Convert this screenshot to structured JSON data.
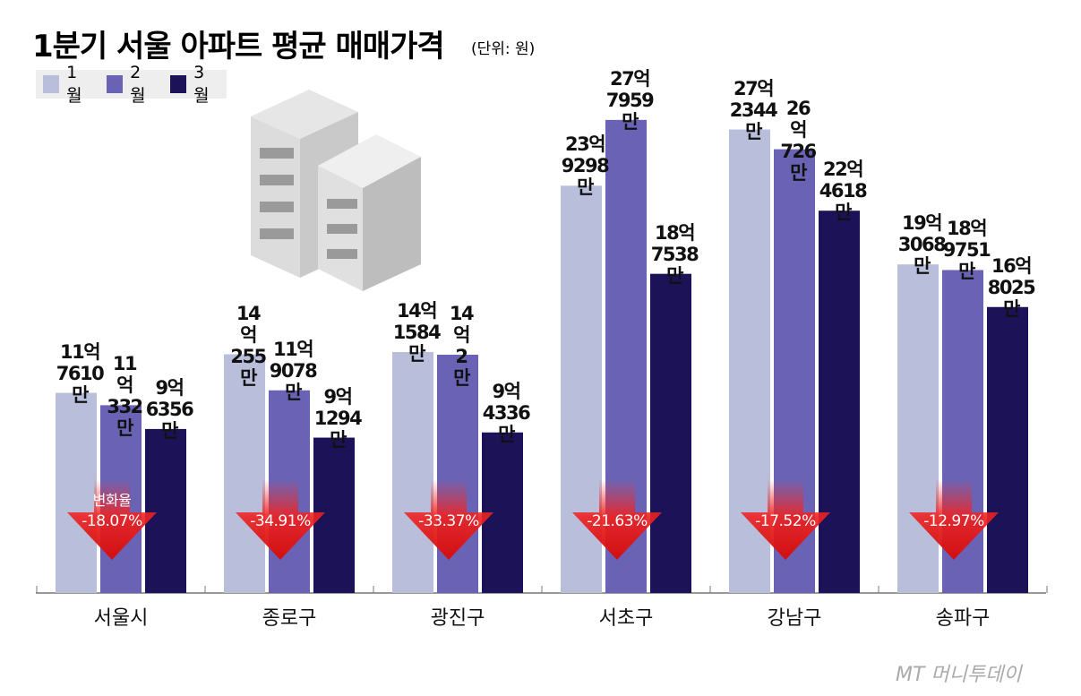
{
  "chart_data": {
    "type": "bar",
    "title": "1분기 서울 아파트 평균 매매가격",
    "subtitle": "(단위: 원)",
    "categories": [
      "서울시",
      "종로구",
      "광진구",
      "서초구",
      "강남구",
      "송파구"
    ],
    "series": [
      {
        "name": "1월",
        "color": "#b9bedb",
        "values": [
          117610,
          140255,
          141584,
          239298,
          272344,
          193068
        ],
        "value_labels": [
          "11억 7610만",
          "14억 255만",
          "14억 1584만",
          "23억 9298만",
          "27억 2344만",
          "19억 3068만"
        ]
      },
      {
        "name": "2월",
        "color": "#6a63b5",
        "values": [
          110332,
          119078,
          140002,
          277959,
          260726,
          189751
        ],
        "value_labels": [
          "11억 332만",
          "11억 9078만",
          "14억 2만",
          "27억 7959만",
          "26억 726만",
          "18억 9751만"
        ]
      },
      {
        "name": "3월",
        "color": "#1c1257",
        "values": [
          96356,
          91294,
          94336,
          187538,
          224618,
          168025
        ],
        "value_labels": [
          "9억 6356만",
          "9억 1294만",
          "9억 4336만",
          "18억 7538만",
          "22억 4618만",
          "16억 8025만"
        ]
      }
    ],
    "change_title": "변화율",
    "changes": [
      {
        "value": -18.07,
        "label": "-18.07%"
      },
      {
        "value": -34.91,
        "label": "-34.91%"
      },
      {
        "value": -33.37,
        "label": "-33.37%"
      },
      {
        "value": -21.63,
        "label": "-21.63%"
      },
      {
        "value": -17.52,
        "label": "-17.52%"
      },
      {
        "value": -12.97,
        "label": "-12.97%"
      }
    ],
    "source": "MT 머니투데이"
  }
}
